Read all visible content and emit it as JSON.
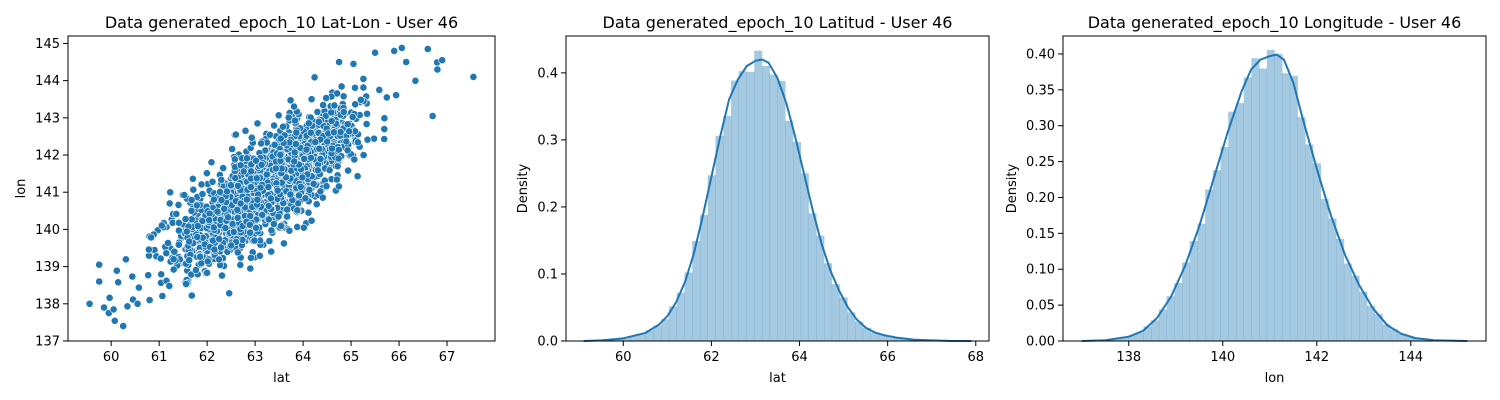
{
  "chart_data": [
    {
      "type": "scatter",
      "title": "Data generated_epoch_10 Lat-Lon - User 46",
      "xlabel": "lat",
      "ylabel": "lon",
      "xlim": [
        59.1,
        68.0
      ],
      "ylim": [
        137.0,
        145.2
      ],
      "xticks": [
        60,
        61,
        62,
        63,
        64,
        65,
        66,
        67
      ],
      "yticks": [
        137,
        138,
        139,
        140,
        141,
        142,
        143,
        144,
        145
      ],
      "grid": false,
      "marker_color": "#1f77b4",
      "marker_edge": "#ffffff",
      "distribution": {
        "n_points": 1800,
        "mean": [
          63.2,
          141.1
        ],
        "sd": [
          0.95,
          1.0
        ],
        "corr": 0.8
      },
      "points": [
        [
          59.55,
          138.0
        ],
        [
          59.75,
          139.05
        ],
        [
          59.75,
          138.6
        ],
        [
          59.85,
          137.9
        ],
        [
          59.95,
          137.75
        ],
        [
          60.05,
          137.85
        ],
        [
          60.25,
          137.4
        ],
        [
          66.6,
          144.85
        ],
        [
          65.9,
          144.8
        ],
        [
          67.55,
          144.1
        ],
        [
          66.9,
          144.55
        ],
        [
          66.8,
          144.3
        ],
        [
          66.7,
          143.05
        ],
        [
          62.6,
          142.55
        ],
        [
          62.8,
          142.65
        ],
        [
          62.9,
          138.95
        ],
        [
          63.05,
          142.85
        ],
        [
          64.75,
          144.5
        ],
        [
          65.05,
          144.45
        ],
        [
          66.15,
          144.5
        ],
        [
          65.5,
          144.75
        ],
        [
          61.3,
          139.2
        ],
        [
          60.55,
          138.0
        ],
        [
          60.8,
          138.1
        ]
      ]
    },
    {
      "type": "area",
      "title": "Data generated_epoch_10 Latitud - User 46",
      "xlabel": "lat",
      "ylabel": "Density",
      "xlim": [
        58.7,
        68.3
      ],
      "ylim": [
        0,
        0.455
      ],
      "xticks": [
        60,
        62,
        64,
        66,
        68
      ],
      "yticks": [
        0.0,
        0.1,
        0.2,
        0.3,
        0.4
      ],
      "grid": false,
      "hist_color": "#1f77b4",
      "kde_color": "#1f77b4",
      "histogram": {
        "range": [
          59.1,
          67.9
        ],
        "bins": 50
      },
      "kde": {
        "x": [
          59.1,
          59.5,
          60.0,
          60.5,
          60.8,
          61.0,
          61.2,
          61.4,
          61.6,
          61.8,
          62.0,
          62.2,
          62.4,
          62.6,
          62.8,
          63.0,
          63.15,
          63.3,
          63.5,
          63.7,
          63.9,
          64.1,
          64.3,
          64.5,
          64.7,
          64.9,
          65.1,
          65.3,
          65.5,
          65.7,
          65.9,
          66.2,
          66.6,
          67.0,
          67.5,
          67.9
        ],
        "y": [
          0.0,
          0.001,
          0.004,
          0.012,
          0.024,
          0.037,
          0.058,
          0.088,
          0.13,
          0.185,
          0.245,
          0.305,
          0.36,
          0.39,
          0.41,
          0.418,
          0.42,
          0.415,
          0.392,
          0.355,
          0.305,
          0.25,
          0.195,
          0.145,
          0.105,
          0.075,
          0.05,
          0.032,
          0.02,
          0.013,
          0.009,
          0.005,
          0.002,
          0.001,
          0.0,
          0.0
        ]
      }
    },
    {
      "type": "area",
      "title": "Data generated_epoch_10 Longitude - User 46",
      "xlabel": "lon",
      "ylabel": "Density",
      "xlim": [
        136.6,
        145.6
      ],
      "ylim": [
        0,
        0.425
      ],
      "xticks": [
        138,
        140,
        142,
        144
      ],
      "yticks": [
        0.0,
        0.05,
        0.1,
        0.15,
        0.2,
        0.25,
        0.3,
        0.35,
        0.4
      ],
      "grid": false,
      "hist_color": "#1f77b4",
      "kde_color": "#1f77b4",
      "histogram": {
        "range": [
          137.0,
          145.2
        ],
        "bins": 50
      },
      "kde": {
        "x": [
          137.0,
          137.5,
          138.0,
          138.3,
          138.6,
          138.9,
          139.2,
          139.5,
          139.8,
          140.1,
          140.4,
          140.6,
          140.8,
          141.0,
          141.15,
          141.3,
          141.5,
          141.7,
          142.0,
          142.3,
          142.6,
          142.9,
          143.2,
          143.5,
          143.8,
          144.1,
          144.5,
          145.2
        ],
        "y": [
          0.0,
          0.001,
          0.006,
          0.014,
          0.032,
          0.062,
          0.105,
          0.16,
          0.225,
          0.29,
          0.348,
          0.378,
          0.392,
          0.397,
          0.399,
          0.392,
          0.36,
          0.31,
          0.24,
          0.175,
          0.12,
          0.078,
          0.045,
          0.022,
          0.01,
          0.004,
          0.001,
          0.0
        ]
      }
    }
  ]
}
